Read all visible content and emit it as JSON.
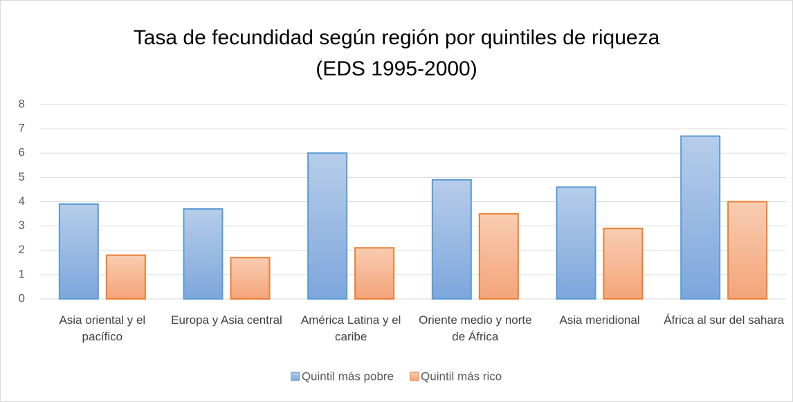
{
  "chart_data": {
    "type": "bar",
    "title": [
      "Tasa de fecundidad según región por quintiles de riqueza",
      "(EDS 1995-2000)"
    ],
    "categories": [
      "Asia oriental y el pacífico",
      "Europa y Asia central",
      "América Latina y el caribe",
      "Oriente medio y norte de África",
      "Asia meridional",
      "África al sur del sahara"
    ],
    "series": [
      {
        "name": "Quintil más pobre",
        "color": "#5b9bd5",
        "values": [
          3.9,
          3.7,
          6.0,
          4.9,
          4.6,
          6.7
        ]
      },
      {
        "name": "Quintil más rico",
        "color": "#ed7d31",
        "values": [
          1.8,
          1.7,
          2.1,
          3.5,
          2.9,
          4.0
        ]
      }
    ],
    "ylim": [
      0,
      8
    ],
    "yticks": [
      0,
      1,
      2,
      3,
      4,
      5,
      6,
      7,
      8
    ],
    "grid": true,
    "legend": "bottom"
  }
}
